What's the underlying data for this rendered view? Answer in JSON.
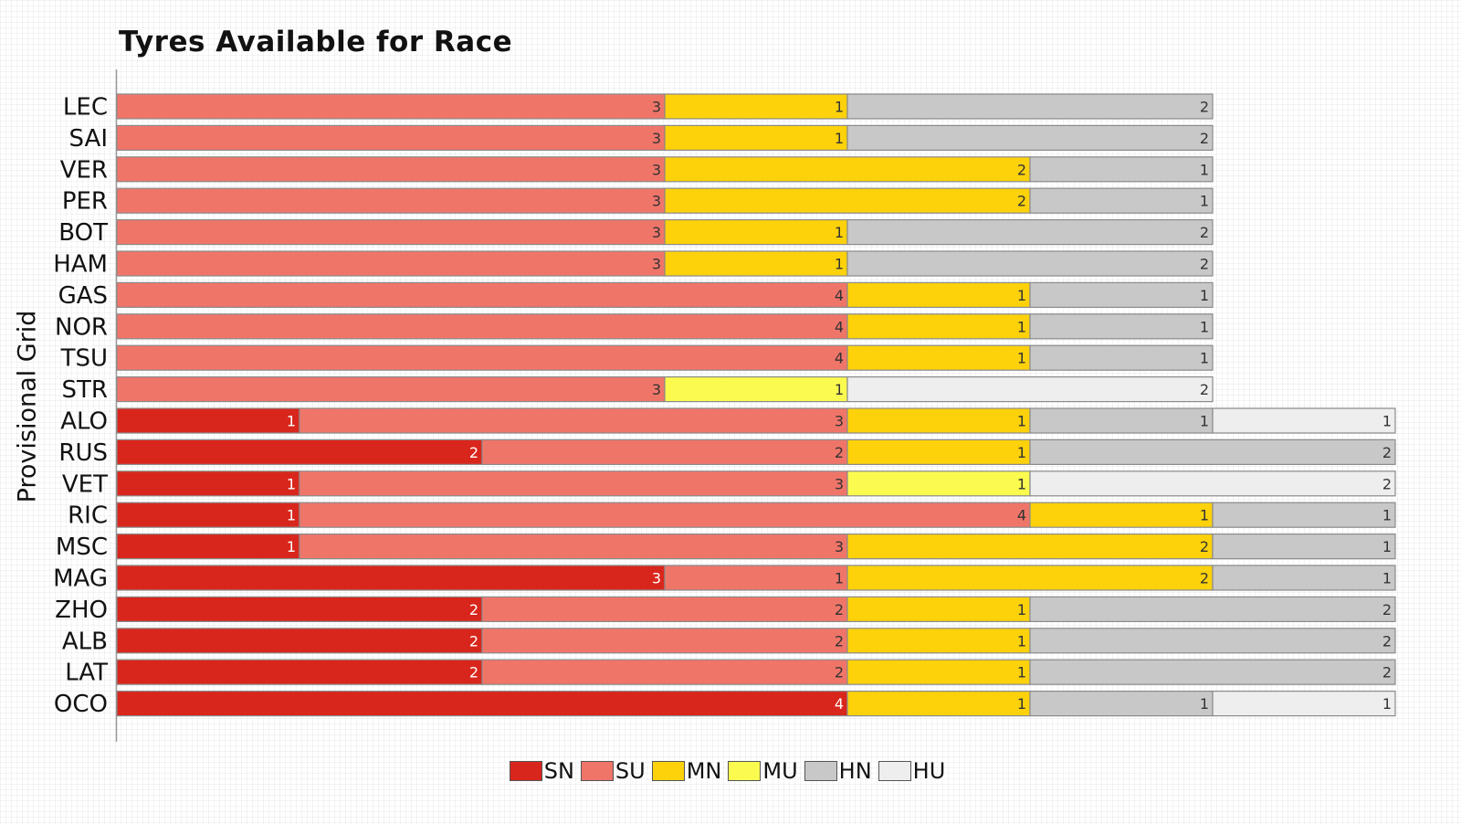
{
  "chart_data": {
    "type": "bar",
    "orientation": "horizontal",
    "stacked": true,
    "title": "Tyres Available for Race",
    "ylabel": "Provisional Grid",
    "xlabel": "",
    "xlim": [
      0,
      7
    ],
    "grid": true,
    "legend_position": "bottom-center",
    "categories": [
      "LEC",
      "SAI",
      "VER",
      "PER",
      "BOT",
      "HAM",
      "GAS",
      "NOR",
      "TSU",
      "STR",
      "ALO",
      "RUS",
      "VET",
      "RIC",
      "MSC",
      "MAG",
      "ZHO",
      "ALB",
      "LAT",
      "OCO"
    ],
    "series": [
      {
        "name": "SN",
        "color": "#d9261c",
        "values": [
          0,
          0,
          0,
          0,
          0,
          0,
          0,
          0,
          0,
          0,
          1,
          2,
          1,
          1,
          1,
          3,
          2,
          2,
          2,
          4
        ]
      },
      {
        "name": "SU",
        "color": "#f07569",
        "values": [
          3,
          3,
          3,
          3,
          3,
          3,
          4,
          4,
          4,
          3,
          3,
          2,
          3,
          4,
          3,
          1,
          2,
          2,
          2,
          0
        ]
      },
      {
        "name": "MN",
        "color": "#fdd20a",
        "values": [
          1,
          1,
          2,
          2,
          1,
          1,
          1,
          1,
          1,
          0,
          1,
          1,
          0,
          1,
          2,
          2,
          1,
          1,
          1,
          1
        ]
      },
      {
        "name": "MU",
        "color": "#fbfb4f",
        "values": [
          0,
          0,
          0,
          0,
          0,
          0,
          0,
          0,
          0,
          1,
          0,
          0,
          1,
          0,
          0,
          0,
          0,
          0,
          0,
          0
        ]
      },
      {
        "name": "HN",
        "color": "#c8c8c8",
        "values": [
          2,
          2,
          1,
          1,
          2,
          2,
          1,
          1,
          1,
          0,
          1,
          2,
          0,
          1,
          1,
          1,
          2,
          2,
          2,
          1
        ]
      },
      {
        "name": "HU",
        "color": "#eeeeee",
        "values": [
          0,
          0,
          0,
          0,
          0,
          0,
          0,
          0,
          0,
          2,
          1,
          0,
          2,
          0,
          0,
          0,
          0,
          0,
          0,
          1
        ]
      }
    ]
  }
}
